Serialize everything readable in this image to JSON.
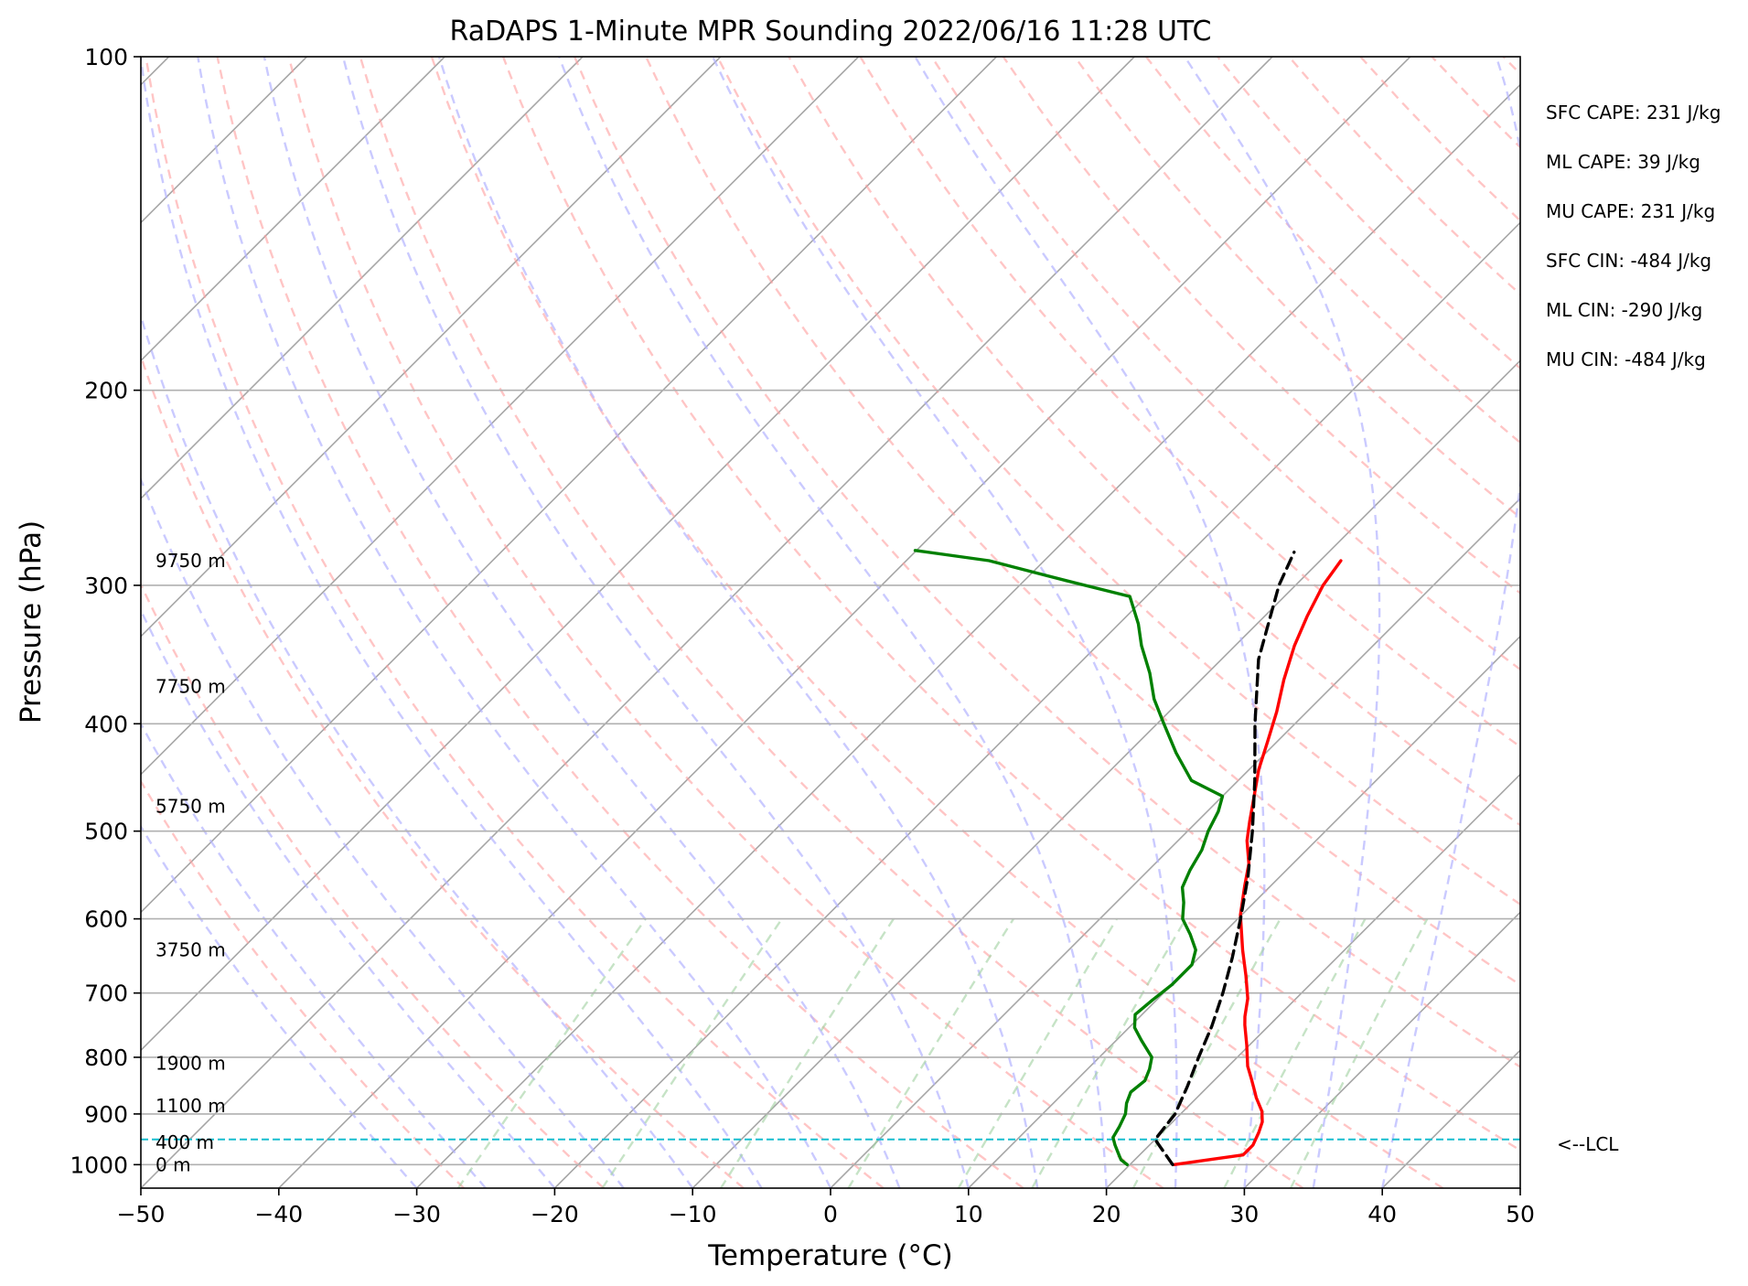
{
  "chart_data": {
    "type": "line",
    "title": "RaDAPS 1-Minute MPR Sounding 2022/06/16 11:28 UTC",
    "xlabel": "Temperature (°C)",
    "ylabel": "Pressure (hPa)",
    "xlim": [
      -50,
      50
    ],
    "ylim": [
      1050,
      100
    ],
    "y_scale": "log",
    "skew": "skew-T",
    "grid": true,
    "x_ticks": [
      "−50",
      "−40",
      "−30",
      "−20",
      "−10",
      "0",
      "10",
      "20",
      "30",
      "40",
      "50"
    ],
    "y_ticks": [
      {
        "p": 100,
        "label": "100"
      },
      {
        "p": 200,
        "label": "200"
      },
      {
        "p": 300,
        "label": "300"
      },
      {
        "p": 400,
        "label": "400"
      },
      {
        "p": 500,
        "label": "500"
      },
      {
        "p": 600,
        "label": "600"
      },
      {
        "p": 700,
        "label": "700"
      },
      {
        "p": 800,
        "label": "800"
      },
      {
        "p": 900,
        "label": "900"
      },
      {
        "p": 1000,
        "label": "1000"
      }
    ],
    "height_labels": [
      {
        "p": 1000,
        "text": "0 m"
      },
      {
        "p": 955,
        "text": "400 m"
      },
      {
        "p": 885,
        "text": "1100 m"
      },
      {
        "p": 810,
        "text": "1900 m"
      },
      {
        "p": 640,
        "text": "3750 m"
      },
      {
        "p": 475,
        "text": "5750 m"
      },
      {
        "p": 370,
        "text": "7750 m"
      },
      {
        "p": 285,
        "text": "9750 m"
      }
    ],
    "indices": [
      "SFC CAPE: 231 J/kg",
      "ML CAPE: 39 J/kg",
      "MU CAPE: 231 J/kg",
      "SFC CIN: -484 J/kg",
      "ML CIN: -290 J/kg",
      "MU CIN: -484 J/kg"
    ],
    "lcl": {
      "p": 949,
      "label": "<--LCL"
    },
    "series": [
      {
        "kind": "temperature",
        "color": "#ff0000",
        "points": [
          [
            1000,
            23.2
          ],
          [
            980,
            27.5
          ],
          [
            960,
            27.5
          ],
          [
            935,
            27.0
          ],
          [
            915,
            26.5
          ],
          [
            895,
            25.7
          ],
          [
            870,
            24.3
          ],
          [
            860,
            23.8
          ],
          [
            835,
            22.5
          ],
          [
            815,
            21.4
          ],
          [
            780,
            19.8
          ],
          [
            748,
            18.2
          ],
          [
            735,
            17.6
          ],
          [
            708,
            16.5
          ],
          [
            675,
            14.7
          ],
          [
            640,
            12.6
          ],
          [
            595,
            9.9
          ],
          [
            560,
            8.1
          ],
          [
            535,
            6.8
          ],
          [
            510,
            5.0
          ],
          [
            490,
            3.8
          ],
          [
            470,
            2.6
          ],
          [
            440,
            0.7
          ],
          [
            415,
            -0.7
          ],
          [
            390,
            -2.2
          ],
          [
            365,
            -4.0
          ],
          [
            340,
            -5.7
          ],
          [
            320,
            -6.9
          ],
          [
            300,
            -8.0
          ],
          [
            285,
            -8.5
          ]
        ]
      },
      {
        "kind": "dewpoint",
        "color": "#008000",
        "points": [
          [
            1000,
            19.8
          ],
          [
            990,
            19.0
          ],
          [
            980,
            18.5
          ],
          [
            960,
            17.5
          ],
          [
            945,
            16.8
          ],
          [
            925,
            16.5
          ],
          [
            900,
            16.0
          ],
          [
            880,
            15.3
          ],
          [
            860,
            14.8
          ],
          [
            840,
            15.0
          ],
          [
            820,
            14.5
          ],
          [
            800,
            13.8
          ],
          [
            772,
            11.8
          ],
          [
            752,
            10.4
          ],
          [
            732,
            9.5
          ],
          [
            710,
            9.7
          ],
          [
            688,
            10.0
          ],
          [
            660,
            10.0
          ],
          [
            640,
            9.2
          ],
          [
            620,
            7.7
          ],
          [
            600,
            6.0
          ],
          [
            580,
            4.9
          ],
          [
            562,
            3.7
          ],
          [
            542,
            3.0
          ],
          [
            520,
            2.4
          ],
          [
            500,
            1.5
          ],
          [
            480,
            0.8
          ],
          [
            465,
            0.0
          ],
          [
            450,
            -3.4
          ],
          [
            425,
            -6.5
          ],
          [
            400,
            -9.5
          ],
          [
            380,
            -12.0
          ],
          [
            360,
            -14.2
          ],
          [
            340,
            -16.8
          ],
          [
            325,
            -18.6
          ],
          [
            307,
            -21.2
          ],
          [
            297,
            -27.0
          ],
          [
            285,
            -34.0
          ],
          [
            279,
            -40.1
          ]
        ]
      },
      {
        "kind": "parcel",
        "color": "#000000",
        "dashed": true,
        "points": [
          [
            1000,
            23.1
          ],
          [
            949,
            20.0
          ],
          [
            900,
            19.6
          ],
          [
            850,
            18.5
          ],
          [
            800,
            17.2
          ],
          [
            750,
            15.9
          ],
          [
            700,
            14.3
          ],
          [
            650,
            12.4
          ],
          [
            600,
            10.2
          ],
          [
            550,
            7.7
          ],
          [
            500,
            4.7
          ],
          [
            450,
            1.2
          ],
          [
            400,
            -2.9
          ],
          [
            350,
            -7.3
          ],
          [
            300,
            -11.2
          ],
          [
            280,
            -12.5
          ]
        ]
      }
    ]
  }
}
